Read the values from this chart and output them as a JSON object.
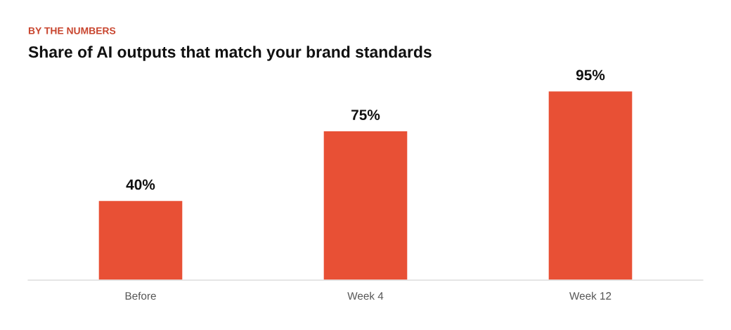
{
  "chart_data": {
    "type": "bar",
    "subtitle": "BY THE NUMBERS",
    "title": "Share of AI outputs that match your brand standards",
    "categories": [
      "Before",
      "Week 4",
      "Week 12"
    ],
    "values": [
      40,
      75,
      95
    ],
    "color": "#e85035",
    "value_labels": [
      "40%",
      "75%",
      "95%"
    ],
    "tick_labels": "x"
  }
}
